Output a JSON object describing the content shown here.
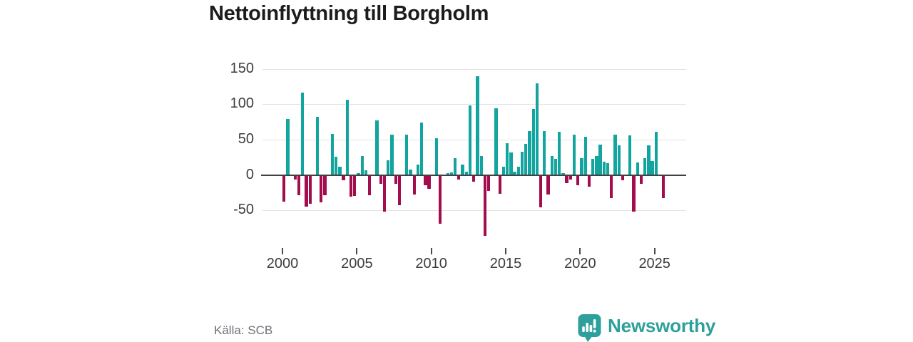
{
  "title": "Nettoinflyttning till Borgholm",
  "source": "Källa: SCB",
  "branding": {
    "name": "Newsworthy"
  },
  "colors": {
    "positive": "#12a49e",
    "negative": "#a30d4d",
    "grid": "#e3e3e3",
    "zero_line": "#414141",
    "title_text": "#1c1c1c",
    "axis_text": "#3c3c3c",
    "source_text": "#6e7178",
    "brand": "#2ea09b"
  },
  "chart_data": {
    "type": "bar",
    "title": "Nettoinflyttning till Borgholm",
    "x_unit": "quarter",
    "start_period": "2000 Q1",
    "end_period": "2025 Q3",
    "x_ticks": [
      2000,
      2005,
      2010,
      2015,
      2020,
      2025
    ],
    "y_ticks": [
      150,
      100,
      50,
      0,
      -50
    ],
    "ylim": [
      -90,
      155
    ],
    "grid": "horizontal",
    "legend": "none",
    "values": [
      -37,
      80,
      1,
      -6,
      -28,
      117,
      -44,
      -40,
      1,
      83,
      -38,
      -28,
      1,
      59,
      27,
      13,
      -7,
      107,
      -30,
      -29,
      4,
      28,
      8,
      -28,
      1,
      78,
      -12,
      -51,
      22,
      58,
      -12,
      -42,
      1,
      58,
      9,
      -27,
      16,
      75,
      -14,
      -19,
      1,
      53,
      -68,
      1,
      4,
      5,
      25,
      -6,
      16,
      6,
      99,
      -9,
      141,
      28,
      -85,
      -22,
      1,
      95,
      -26,
      13,
      46,
      33,
      6,
      13,
      34,
      45,
      63,
      94,
      131,
      -45,
      63,
      -27,
      28,
      24,
      62,
      4,
      -11,
      -6,
      58,
      -14,
      25,
      55,
      -16,
      24,
      28,
      44,
      20,
      18,
      -32,
      58,
      43,
      -7,
      1,
      57,
      -51,
      19,
      -12,
      25,
      43,
      21,
      62,
      1,
      -32
    ]
  }
}
